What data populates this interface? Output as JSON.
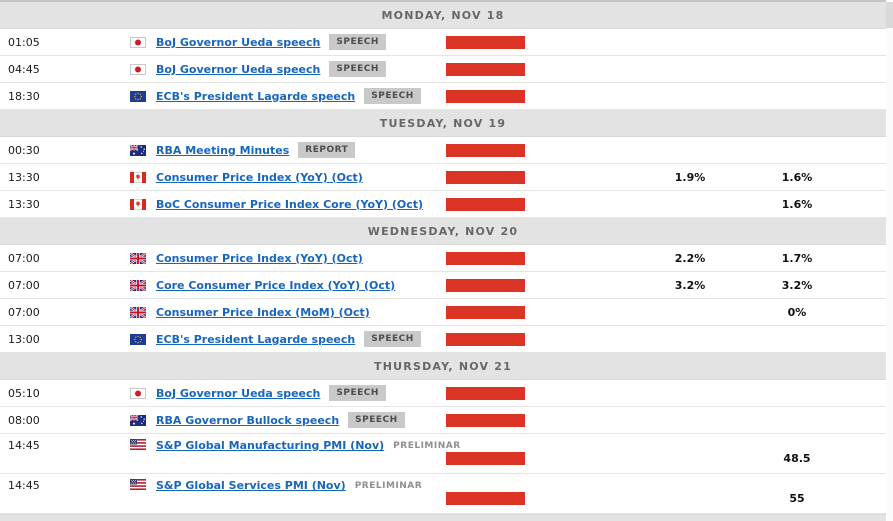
{
  "colors": {
    "impact_red": "#dc3424",
    "link_blue": "#1766be",
    "day_header_bg": "#e3e3e3",
    "day_header_text": "#676767",
    "badge_bg": "#c9c9c9",
    "badge_text": "#4d4d4d",
    "preliminary_text": "#8f8f8f"
  },
  "days": [
    {
      "label": "MONDAY, NOV 18",
      "events": [
        {
          "time": "01:05",
          "flag": "japan",
          "title": "BoJ Governor Ueda speech",
          "badge": "SPEECH",
          "badge_type": "boxed",
          "impact": "high",
          "forecast": "",
          "previous": "",
          "layout": "normal"
        },
        {
          "time": "04:45",
          "flag": "japan",
          "title": "BoJ Governor Ueda speech",
          "badge": "SPEECH",
          "badge_type": "boxed",
          "impact": "high",
          "forecast": "",
          "previous": "",
          "layout": "normal"
        },
        {
          "time": "18:30",
          "flag": "european-union",
          "title": "ECB's President Lagarde speech",
          "badge": "SPEECH",
          "badge_type": "boxed",
          "impact": "high",
          "forecast": "",
          "previous": "",
          "layout": "normal"
        }
      ]
    },
    {
      "label": "TUESDAY, NOV 19",
      "events": [
        {
          "time": "00:30",
          "flag": "australia",
          "title": "RBA Meeting Minutes",
          "badge": "REPORT",
          "badge_type": "boxed",
          "impact": "high",
          "forecast": "",
          "previous": "",
          "layout": "normal"
        },
        {
          "time": "13:30",
          "flag": "canada",
          "title": "Consumer Price Index (YoY) (Oct)",
          "badge": "",
          "badge_type": "none",
          "impact": "high",
          "forecast": "1.9%",
          "previous": "1.6%",
          "layout": "normal"
        },
        {
          "time": "13:30",
          "flag": "canada",
          "title": "BoC Consumer Price Index Core (YoY) (Oct)",
          "badge": "",
          "badge_type": "none",
          "impact": "high",
          "forecast": "",
          "previous": "1.6%",
          "layout": "normal"
        }
      ]
    },
    {
      "label": "WEDNESDAY, NOV 20",
      "events": [
        {
          "time": "07:00",
          "flag": "united-kingdom",
          "title": "Consumer Price Index (YoY) (Oct)",
          "badge": "",
          "badge_type": "none",
          "impact": "high",
          "forecast": "2.2%",
          "previous": "1.7%",
          "layout": "normal"
        },
        {
          "time": "07:00",
          "flag": "united-kingdom",
          "title": "Core Consumer Price Index (YoY) (Oct)",
          "badge": "",
          "badge_type": "none",
          "impact": "high",
          "forecast": "3.2%",
          "previous": "3.2%",
          "layout": "normal"
        },
        {
          "time": "07:00",
          "flag": "united-kingdom",
          "title": "Consumer Price Index (MoM) (Oct)",
          "badge": "",
          "badge_type": "none",
          "impact": "high",
          "forecast": "",
          "previous": "0%",
          "layout": "normal"
        },
        {
          "time": "13:00",
          "flag": "european-union",
          "title": "ECB's President Lagarde speech",
          "badge": "SPEECH",
          "badge_type": "boxed",
          "impact": "high",
          "forecast": "",
          "previous": "",
          "layout": "normal"
        }
      ]
    },
    {
      "label": "THURSDAY, NOV 21",
      "events": [
        {
          "time": "05:10",
          "flag": "japan",
          "title": "BoJ Governor Ueda speech",
          "badge": "SPEECH",
          "badge_type": "boxed",
          "impact": "high",
          "forecast": "",
          "previous": "",
          "layout": "normal"
        },
        {
          "time": "08:00",
          "flag": "australia",
          "title": "RBA Governor Bullock speech",
          "badge": "SPEECH",
          "badge_type": "boxed",
          "impact": "high",
          "forecast": "",
          "previous": "",
          "layout": "normal"
        },
        {
          "time": "14:45",
          "flag": "united-states",
          "title": "S&P Global Manufacturing PMI (Nov)",
          "badge": "PRELIMINAR",
          "badge_type": "plain",
          "impact": "high",
          "forecast": "",
          "previous": "48.5",
          "layout": "tall"
        },
        {
          "time": "14:45",
          "flag": "united-states",
          "title": "S&P Global Services PMI (Nov)",
          "badge": "PRELIMINAR",
          "badge_type": "plain",
          "impact": "high",
          "forecast": "",
          "previous": "55",
          "layout": "tall"
        }
      ]
    }
  ]
}
